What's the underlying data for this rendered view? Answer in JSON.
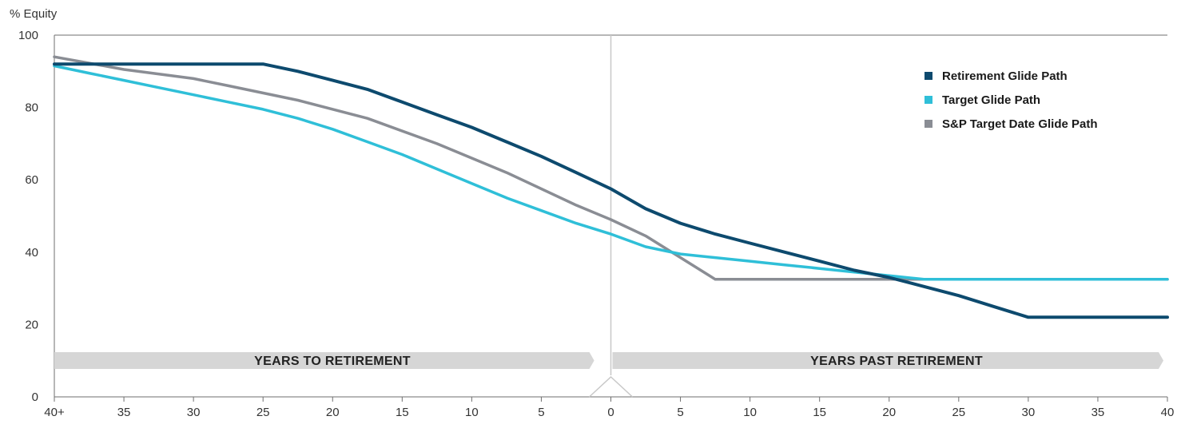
{
  "chart_data": {
    "type": "line",
    "ylabel": "% Equity",
    "xlabel": "",
    "title": "",
    "ylim": [
      0,
      100
    ],
    "xlim": [
      -40,
      40
    ],
    "yticks": [
      0,
      20,
      40,
      60,
      80,
      100
    ],
    "x_ticks": [
      {
        "value": -40,
        "label": "40+"
      },
      {
        "value": -35,
        "label": "35"
      },
      {
        "value": -30,
        "label": "30"
      },
      {
        "value": -25,
        "label": "25"
      },
      {
        "value": -20,
        "label": "20"
      },
      {
        "value": -15,
        "label": "15"
      },
      {
        "value": -10,
        "label": "10"
      },
      {
        "value": -5,
        "label": "5"
      },
      {
        "value": 0,
        "label": "0"
      },
      {
        "value": 5,
        "label": "5"
      },
      {
        "value": 10,
        "label": "10"
      },
      {
        "value": 15,
        "label": "15"
      },
      {
        "value": 20,
        "label": "20"
      },
      {
        "value": 25,
        "label": "25"
      },
      {
        "value": 30,
        "label": "30"
      },
      {
        "value": 35,
        "label": "35"
      },
      {
        "value": 40,
        "label": "40"
      }
    ],
    "bands": {
      "left": "YEARS TO RETIREMENT",
      "right": "YEARS PAST RETIREMENT"
    },
    "legend_position": "top-right",
    "grid": false,
    "series": [
      {
        "name": "Retirement Glide Path",
        "color": "#0d4a6e",
        "points": [
          [
            -40,
            92
          ],
          [
            -25,
            92
          ],
          [
            -22.5,
            90
          ],
          [
            -20,
            87.5
          ],
          [
            -17.5,
            85
          ],
          [
            -15,
            81.5
          ],
          [
            -12.5,
            78
          ],
          [
            -10,
            74.5
          ],
          [
            -7.5,
            70.5
          ],
          [
            -5,
            66.5
          ],
          [
            -2.5,
            62
          ],
          [
            0,
            57.5
          ],
          [
            2.5,
            52
          ],
          [
            5,
            48
          ],
          [
            7.5,
            45
          ],
          [
            10,
            42.5
          ],
          [
            12.5,
            40
          ],
          [
            15,
            37.5
          ],
          [
            17.5,
            35
          ],
          [
            20,
            33
          ],
          [
            22.5,
            30.5
          ],
          [
            25,
            28
          ],
          [
            27.5,
            25
          ],
          [
            30,
            22
          ],
          [
            40,
            22
          ]
        ]
      },
      {
        "name": "Target Glide Path",
        "color": "#2fbfd8",
        "points": [
          [
            -40,
            91.5
          ],
          [
            -37.5,
            89.5
          ],
          [
            -35,
            87.5
          ],
          [
            -32.5,
            85.5
          ],
          [
            -30,
            83.5
          ],
          [
            -27.5,
            81.5
          ],
          [
            -25,
            79.5
          ],
          [
            -22.5,
            77
          ],
          [
            -20,
            74
          ],
          [
            -17.5,
            70.5
          ],
          [
            -15,
            67
          ],
          [
            -12.5,
            63
          ],
          [
            -10,
            59
          ],
          [
            -7.5,
            55
          ],
          [
            -5,
            51.5
          ],
          [
            -2.5,
            48
          ],
          [
            0,
            45
          ],
          [
            2.5,
            41.5
          ],
          [
            5,
            39.5
          ],
          [
            7.5,
            38.5
          ],
          [
            10,
            37.5
          ],
          [
            12.5,
            36.5
          ],
          [
            15,
            35.5
          ],
          [
            17.5,
            34.5
          ],
          [
            20,
            33.5
          ],
          [
            22.5,
            32.5
          ],
          [
            40,
            32.5
          ]
        ]
      },
      {
        "name": "S&P Target Date Glide Path",
        "color": "#8a8d94",
        "points": [
          [
            -40,
            94
          ],
          [
            -35,
            90.5
          ],
          [
            -30,
            88
          ],
          [
            -27.5,
            86
          ],
          [
            -22.5,
            82
          ],
          [
            -17.5,
            77
          ],
          [
            -12.5,
            70
          ],
          [
            -7.5,
            62
          ],
          [
            -2.5,
            53
          ],
          [
            0,
            49
          ],
          [
            2.5,
            44.5
          ],
          [
            7.5,
            32.5
          ],
          [
            40,
            32.5
          ]
        ]
      }
    ]
  }
}
